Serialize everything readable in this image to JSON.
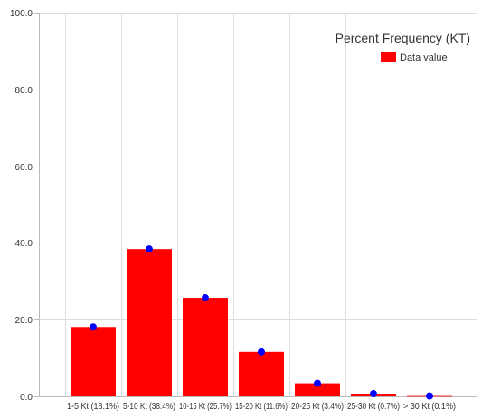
{
  "chart_data": {
    "type": "bar",
    "title": "",
    "xlabel": "",
    "ylabel": "",
    "categories": [
      "1-5 Kt (18.1%)",
      "5-10 Kt (38.4%)",
      "10-15 Kt (25.7%)",
      "15-20 Kt (11.6%)",
      "20-25 Kt (3.4%)",
      "25-30 Kt (0.7%)",
      "> 30 Kt (0.1%)"
    ],
    "series": [
      {
        "name": "Data value",
        "values": [
          18.1,
          38.4,
          25.7,
          11.6,
          3.4,
          0.7,
          0.1
        ]
      }
    ],
    "ylim": [
      0,
      100
    ],
    "y_ticks": [
      "0.0",
      "20.0",
      "40.0",
      "60.0",
      "80.0",
      "100.0"
    ],
    "grid": true,
    "legend": {
      "title": "Percent Frequency (KT)",
      "entries": [
        "Data value"
      ],
      "placement": "top-right"
    },
    "markers": true,
    "colors": {
      "bar": "#ff0000",
      "marker": "#0000ff",
      "grid": "#dddddd",
      "axis": "#bbbbbb"
    }
  }
}
